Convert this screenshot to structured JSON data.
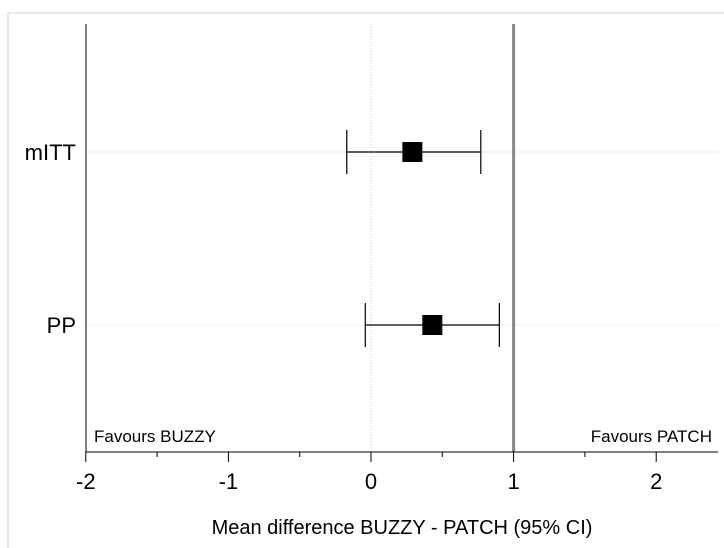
{
  "chart_data": {
    "type": "forest",
    "xlabel": "Mean difference BUZZY - PATCH (95% CI)",
    "xlim": [
      -2,
      2.4
    ],
    "xticks": [
      -2,
      -1,
      0,
      1,
      2
    ],
    "xtick_labels": [
      "-2",
      "-1",
      "0",
      "1",
      "2"
    ],
    "reference_line": 1,
    "null_line": 0,
    "left_annotation": "Favours BUZZY",
    "right_annotation": "Favours PATCH",
    "rows": [
      {
        "label": "mITT",
        "estimate": 0.29,
        "ci_low": -0.17,
        "ci_high": 0.77
      },
      {
        "label": "PP",
        "estimate": 0.43,
        "ci_low": -0.04,
        "ci_high": 0.9
      }
    ],
    "colors": {
      "marker": "#000000",
      "reference_line": "#888888",
      "null_line": "#bbbbbb",
      "row_line": "#eeeeee"
    }
  }
}
